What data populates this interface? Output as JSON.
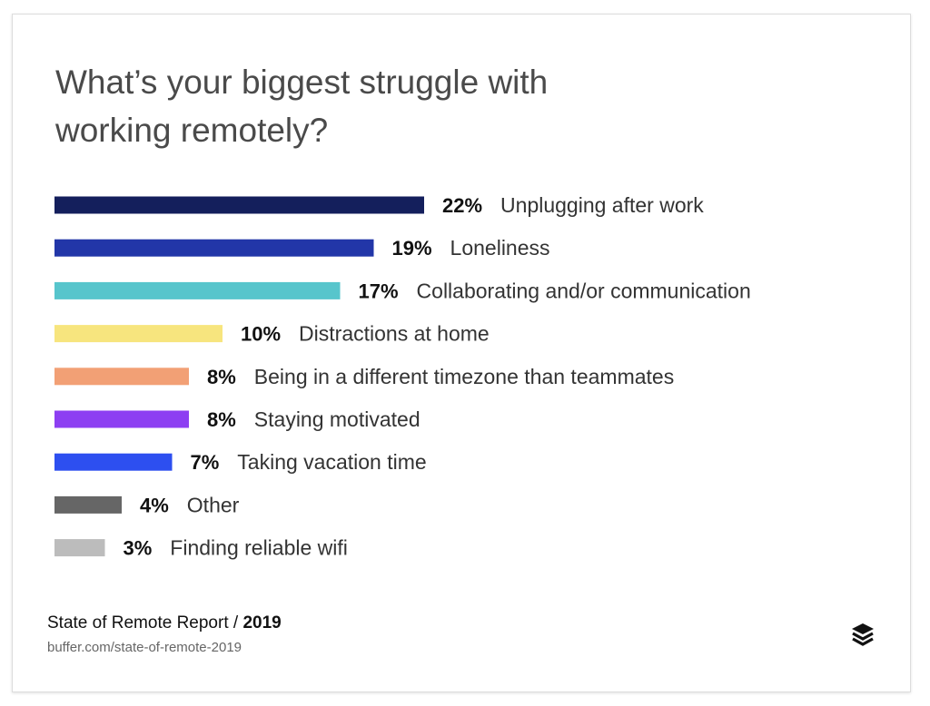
{
  "chart_data": {
    "type": "bar",
    "orientation": "horizontal",
    "title": "What’s your biggest struggle with working remotely?",
    "title_lines": [
      "What’s your biggest struggle with",
      "working remotely?"
    ],
    "categories": [
      "Unplugging after work",
      "Loneliness",
      "Collaborating and/or communication",
      "Distractions at home",
      "Being in a different timezone than teammates",
      "Staying motivated",
      "Taking vacation time",
      "Other",
      "Finding reliable wifi"
    ],
    "values": [
      22,
      19,
      17,
      10,
      8,
      8,
      7,
      4,
      3
    ],
    "value_labels": [
      "22%",
      "19%",
      "17%",
      "10%",
      "8%",
      "8%",
      "7%",
      "4%",
      "3%"
    ],
    "colors": [
      "#141f5c",
      "#2236a8",
      "#57c5cc",
      "#f7e57e",
      "#f2a075",
      "#8d3ff2",
      "#2d4ff0",
      "#666666",
      "#bcbcbc"
    ],
    "xlabel": "",
    "ylabel": "",
    "grid": false,
    "legend": "none"
  },
  "footer": {
    "source_prefix": "State of Remote Report / ",
    "source_year": "2019",
    "url": "buffer.com/state-of-remote-2019",
    "logo_icon": "buffer-logo-icon"
  }
}
